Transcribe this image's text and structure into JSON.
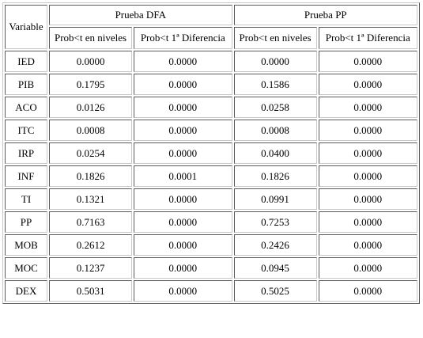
{
  "table": {
    "variable_header": "Variable",
    "groups": [
      "Prueba DFA",
      "Prueba PP"
    ],
    "subheaders": [
      "Prob<t en niveles",
      "Prob<t 1ª Diferencia",
      "Prob<t en niveles",
      "Prob<t 1ª Diferencia"
    ],
    "rows": [
      {
        "variable": "IED",
        "dfa_levels": "0.0000",
        "dfa_diff": "0.0000",
        "pp_levels": "0.0000",
        "pp_diff": "0.0000"
      },
      {
        "variable": "PIB",
        "dfa_levels": "0.1795",
        "dfa_diff": "0.0000",
        "pp_levels": "0.1586",
        "pp_diff": "0.0000"
      },
      {
        "variable": "ACO",
        "dfa_levels": "0.0126",
        "dfa_diff": "0.0000",
        "pp_levels": "0.0258",
        "pp_diff": "0.0000"
      },
      {
        "variable": "ITC",
        "dfa_levels": "0.0008",
        "dfa_diff": "0.0000",
        "pp_levels": "0.0008",
        "pp_diff": "0.0000"
      },
      {
        "variable": "IRP",
        "dfa_levels": "0.0254",
        "dfa_diff": "0.0000",
        "pp_levels": "0.0400",
        "pp_diff": "0.0000"
      },
      {
        "variable": "INF",
        "dfa_levels": "0.1826",
        "dfa_diff": "0.0001",
        "pp_levels": "0.1826",
        "pp_diff": "0.0000"
      },
      {
        "variable": "TI",
        "dfa_levels": "0.1321",
        "dfa_diff": "0.0000",
        "pp_levels": "0.0991",
        "pp_diff": "0.0000"
      },
      {
        "variable": "PP",
        "dfa_levels": "0.7163",
        "dfa_diff": "0.0000",
        "pp_levels": "0.7253",
        "pp_diff": "0.0000"
      },
      {
        "variable": "MOB",
        "dfa_levels": "0.2612",
        "dfa_diff": "0.0000",
        "pp_levels": "0.2426",
        "pp_diff": "0.0000"
      },
      {
        "variable": "MOC",
        "dfa_levels": "0.1237",
        "dfa_diff": "0.0000",
        "pp_levels": "0.0945",
        "pp_diff": "0.0000"
      },
      {
        "variable": "DEX",
        "dfa_levels": "0.5031",
        "dfa_diff": "0.0000",
        "pp_levels": "0.5025",
        "pp_diff": "0.0000"
      }
    ]
  }
}
